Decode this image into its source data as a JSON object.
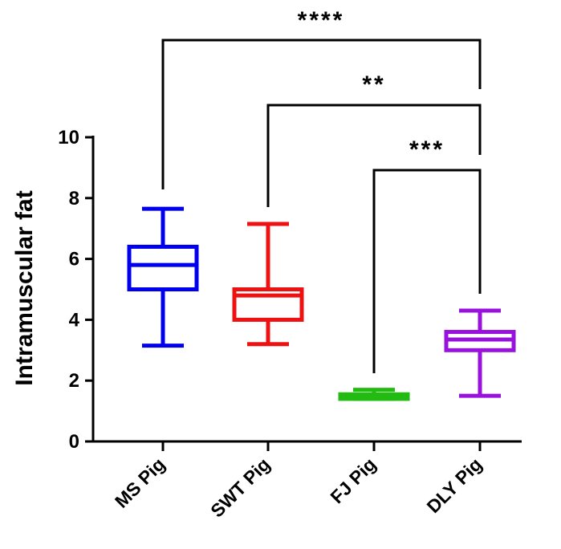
{
  "chart_data": {
    "type": "boxplot",
    "title": "",
    "xlabel": "",
    "ylabel": "Intramuscular fat",
    "ylim": [
      0,
      10
    ],
    "yticks": [
      0,
      2,
      4,
      6,
      8,
      10
    ],
    "categories": [
      "MS Pig",
      "SWT Pig",
      "FJ Pig",
      "DLY Pig"
    ],
    "series": [
      {
        "name": "MS Pig",
        "color": "#0000ee",
        "min": 3.15,
        "q1": 5.0,
        "median": 5.8,
        "q3": 6.4,
        "max": 7.65
      },
      {
        "name": "SWT Pig",
        "color": "#ee1111",
        "min": 3.2,
        "q1": 4.0,
        "median": 4.8,
        "q3": 5.0,
        "max": 7.15
      },
      {
        "name": "FJ Pig",
        "color": "#22bb11",
        "min": 1.4,
        "q1": 1.4,
        "median": 1.5,
        "q3": 1.55,
        "max": 1.7
      },
      {
        "name": "DLY Pig",
        "color": "#9911dd",
        "min": 1.5,
        "q1": 3.0,
        "median": 3.35,
        "q3": 3.6,
        "max": 4.3
      }
    ],
    "annotations": [
      {
        "from": "MS Pig",
        "to": "DLY Pig",
        "label": "****"
      },
      {
        "from": "SWT Pig",
        "to": "DLY Pig",
        "label": "**"
      },
      {
        "from": "FJ Pig",
        "to": "DLY Pig",
        "label": "***"
      }
    ]
  }
}
